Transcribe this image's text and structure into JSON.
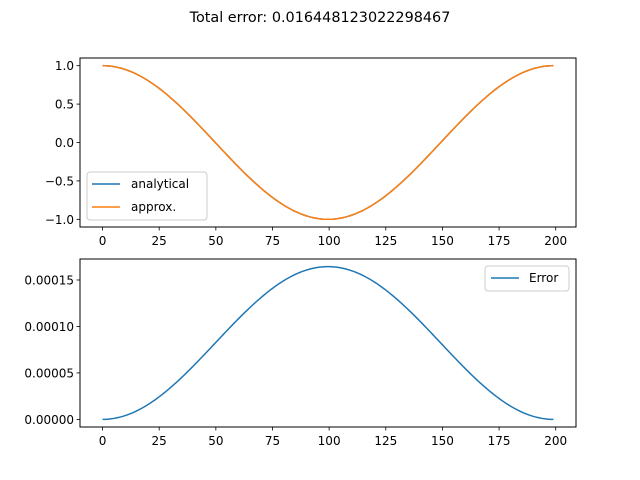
{
  "figure": {
    "title": "Total error: 0.016448123022298467"
  },
  "colors": {
    "series_blue": "#1f77b4",
    "series_orange": "#ff7f0e",
    "axes": "#000000",
    "legend_border": "#cccccc"
  },
  "chart_data": [
    {
      "type": "line",
      "x_range": [
        0,
        199
      ],
      "xticks": [
        0,
        25,
        50,
        75,
        100,
        125,
        150,
        175,
        200
      ],
      "xtick_labels": [
        "0",
        "25",
        "50",
        "75",
        "100",
        "125",
        "150",
        "175",
        "200"
      ],
      "xlim": [
        -9.95,
        208.95
      ],
      "ylim": [
        -1.1,
        1.1
      ],
      "yticks": [
        1.0,
        0.5,
        0.0,
        -0.5,
        -1.0
      ],
      "ytick_labels": [
        "1.0",
        "0.5",
        "0.0",
        "−0.5",
        "−1.0"
      ],
      "grid": false,
      "legend": "lower-left",
      "series": [
        {
          "name": "analytical",
          "formula": "cos(2*pi*x/199)",
          "color": "#1f77b4"
        },
        {
          "name": "approx.",
          "formula": "cos(2*pi*x/199)",
          "color": "#ff7f0e"
        }
      ]
    },
    {
      "type": "line",
      "x_range": [
        0,
        199
      ],
      "xticks": [
        0,
        25,
        50,
        75,
        100,
        125,
        150,
        175,
        200
      ],
      "xtick_labels": [
        "0",
        "25",
        "50",
        "75",
        "100",
        "125",
        "150",
        "175",
        "200"
      ],
      "xlim": [
        -9.95,
        208.95
      ],
      "ylim": [
        -8.2e-06,
        0.0001726
      ],
      "yticks": [
        0.00015,
        0.0001,
        5e-05,
        0.0
      ],
      "ytick_labels": [
        "0.00015",
        "0.00010",
        "0.00005",
        "0.00000"
      ],
      "grid": false,
      "legend": "upper-right",
      "peak": 0.0001644,
      "series": [
        {
          "name": "Error",
          "formula": "0.0001644*(1-cos(2*pi*x/199))/2",
          "color": "#1f77b4"
        }
      ]
    }
  ]
}
